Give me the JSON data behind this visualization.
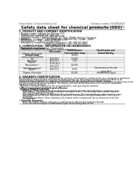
{
  "title": "Safety data sheet for chemical products (SDS)",
  "header_left": "Product Name: Lithium Ion Battery Cell",
  "header_right": "Substance number: SDS-MB-00618\nEstablishment / Revision: Dec.7.2018",
  "section1_title": "1. PRODUCT AND COMPANY IDENTIFICATION",
  "section1_lines": [
    "• Product name: Lithium Ion Battery Cell",
    "• Product code: Cylindrical-type cell",
    "   SNY-B6500, SNY-B6500L, SNY-B6500A",
    "• Company name:    Sanyo Electric Co., Ltd., Mobile Energy Company",
    "• Address:          2217-1  Kamimaruko,  Sumoto-City, Hyogo,  Japan",
    "• Telephone number:    +81-(799)-26-4111",
    "• Fax number:    +81-(799)-26-4123",
    "• Emergency telephone number (daytime) +81-799-26-2662",
    "                                     [Night and holiday] +81-799-26-2021"
  ],
  "section2_title": "2. COMPOSITION / INFORMATION ON INGREDIENTS",
  "section2_lines": [
    "• Substance or preparation: Preparation",
    "• Information about the chemical nature of product:"
  ],
  "table_headers": [
    "Chemical/chemical name\n\nGeneral name",
    "CAS number",
    "Concentration /\nConcentration range",
    "Classification and\nhazard labeling"
  ],
  "table_rows": [
    [
      "Lithium cobalt oxide\n(LiMn/CoO2/LiCoO2(M))",
      "-",
      "30-60%",
      "-"
    ],
    [
      "Iron",
      "7439-89-6",
      "10-20%",
      "-"
    ],
    [
      "Aluminium",
      "7429-90-5",
      "2-5%",
      "-"
    ],
    [
      "Graphite\n(Mesocarbon-I)\n(Artificial graphite)",
      "17799-40-5\n7782-42-5",
      "10-20%",
      "-"
    ],
    [
      "Copper",
      "7440-50-8",
      "5-15%",
      "Sensitization of the skin\ngroup No.2"
    ],
    [
      "Organic electrolyte",
      "-",
      "10-20%",
      "Inflammatory liquid"
    ]
  ],
  "section3_title": "3. HAZARDS IDENTIFICATION",
  "section3_lines": [
    "For the battery cell, chemical substances are stored in a hermetically-sealed metal case, designed to withstand",
    "temperatures and pressures encountered during normal use. As a result, during normal use, there is no",
    "physical danger of ignition or explosion and therefore danger of hazardous materials leakage.",
    "  However, if exposed to a fire, added mechanical shocks, decomposed, when electro-chemical reactions may occur,",
    "the gas release vent will be operated. The battery cell case will be breached at fire extreme, hazardous",
    "materials may be released.",
    "  Moreover, if heated strongly by the surrounding fire, toxic gas may be emitted."
  ],
  "bullet_important": "• Most important hazard and effects:",
  "sub_human": "Human health effects:",
  "sub_human_lines": [
    "    Inhalation: The release of the electrolyte has an anesthesia action and stimulates a respiratory tract.",
    "    Skin contact: The release of the electrolyte stimulates a skin. The electrolyte skin contact causes a",
    "    sore and stimulation on the skin.",
    "    Eye contact: The release of the electrolyte stimulates eyes. The electrolyte eye contact causes a sore",
    "    and stimulation on the eye. Especially, a substance that causes a strong inflammation of the eyes is",
    "    contained.",
    "    Environmental effects: Since a battery cell remains in the environment, do not throw out it into the",
    "    environment."
  ],
  "sub_specific": "• Specific hazards:",
  "sub_specific_lines": [
    "    If the electrolyte contacts with water, it will generate detrimental hydrogen fluoride.",
    "    Since the seal electrolyte is inflammable liquid, do not bring close to fire."
  ],
  "bg_color": "#ffffff",
  "text_color": "#111111",
  "table_line_color": "#999999"
}
